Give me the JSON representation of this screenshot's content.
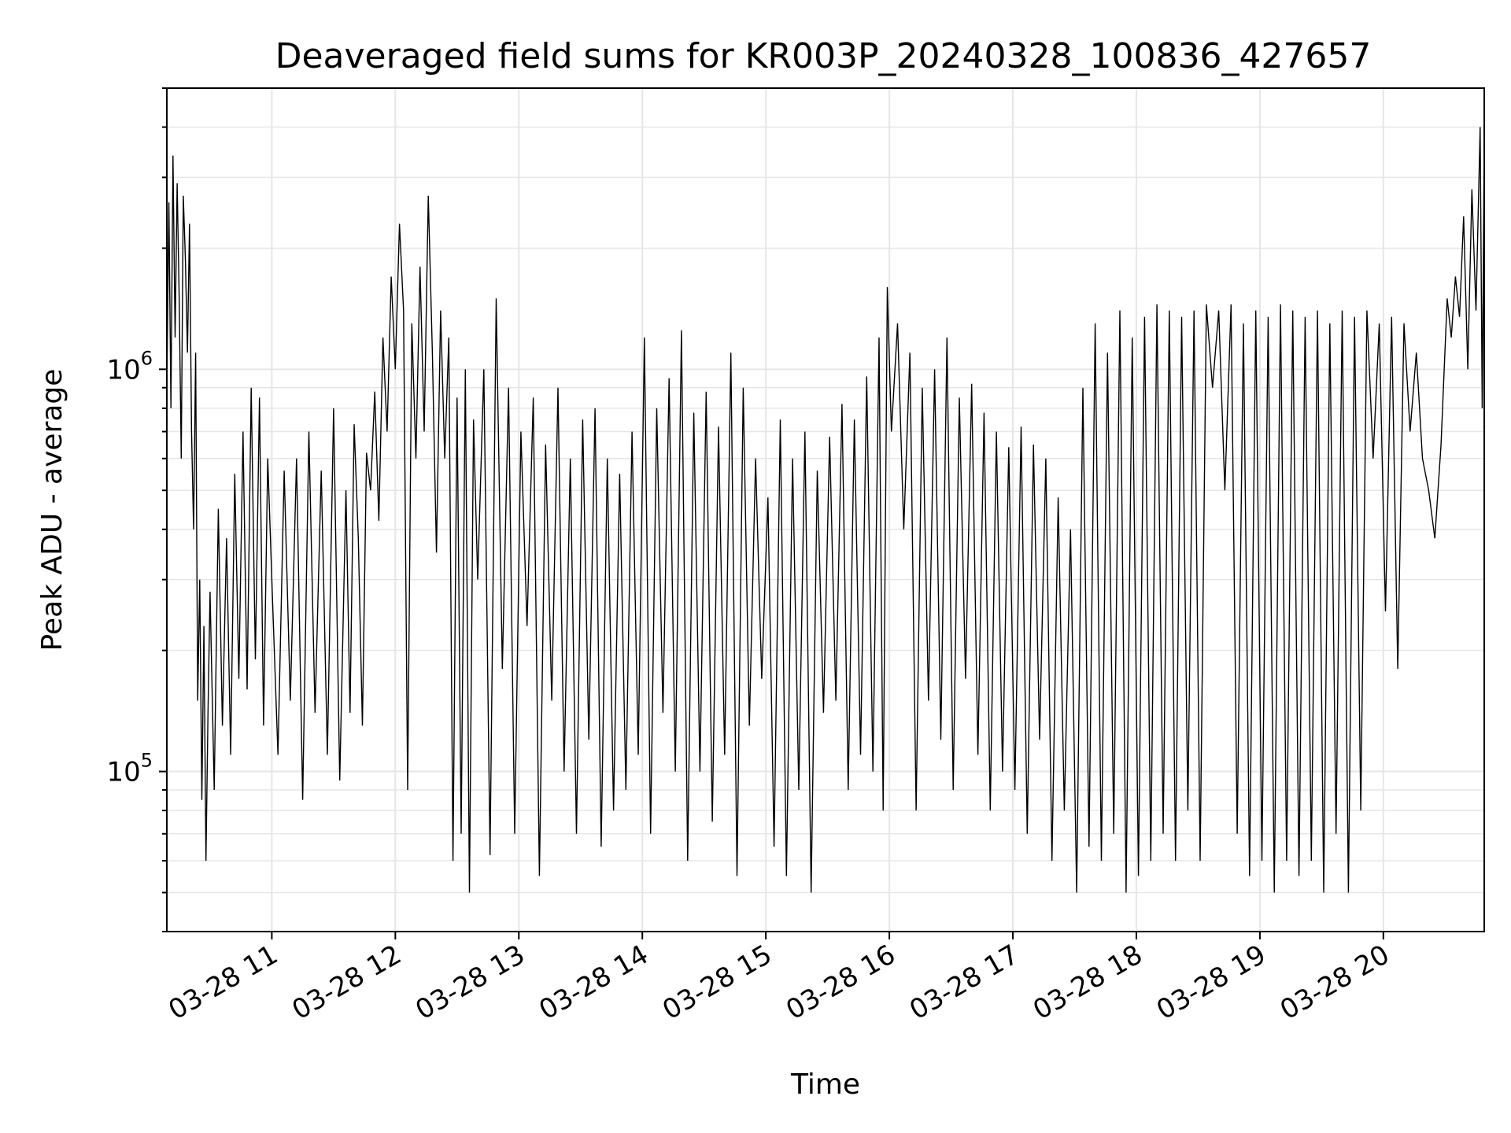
{
  "chart_data": {
    "type": "line",
    "title": "Deaveraged field sums for KR003P_20240328_100836_427657",
    "xlabel": "Time",
    "ylabel": "Peak ADU - average",
    "x_start": "2024-03-28 10:09",
    "x_end": "2024-03-28 20:49",
    "xlim": [
      "2024-03-28 10:09",
      "2024-03-28 20:49"
    ],
    "ylim": [
      40000,
      5000000
    ],
    "y_scale": "log",
    "grid": true,
    "line_color": "#000000",
    "x_ticks": [
      "03-28 11",
      "03-28 12",
      "03-28 13",
      "03-28 14",
      "03-28 15",
      "03-28 16",
      "03-28 17",
      "03-28 18",
      "03-28 19",
      "03-28 20"
    ],
    "y_ticks": [
      {
        "value": 100000,
        "base": "10",
        "exp": "5"
      },
      {
        "value": 1000000,
        "base": "10",
        "exp": "6"
      }
    ],
    "series": [
      {
        "x": [
          "2024-03-28 10:09",
          "2024-03-28 10:10",
          "2024-03-28 10:11",
          "2024-03-28 10:12",
          "2024-03-28 10:13",
          "2024-03-28 10:14",
          "2024-03-28 10:15",
          "2024-03-28 10:16",
          "2024-03-28 10:17",
          "2024-03-28 10:18",
          "2024-03-28 10:19",
          "2024-03-28 10:20",
          "2024-03-28 10:21",
          "2024-03-28 10:22",
          "2024-03-28 10:23",
          "2024-03-28 10:24",
          "2024-03-28 10:25",
          "2024-03-28 10:26",
          "2024-03-28 10:27",
          "2024-03-28 10:28",
          "2024-03-28 10:29",
          "2024-03-28 10:30",
          "2024-03-28 10:32",
          "2024-03-28 10:34",
          "2024-03-28 10:36",
          "2024-03-28 10:38",
          "2024-03-28 10:40",
          "2024-03-28 10:42",
          "2024-03-28 10:44",
          "2024-03-28 10:46",
          "2024-03-28 10:48",
          "2024-03-28 10:50",
          "2024-03-28 10:52",
          "2024-03-28 10:54",
          "2024-03-28 10:56",
          "2024-03-28 10:58",
          "2024-03-28 11:00",
          "2024-03-28 11:03",
          "2024-03-28 11:06",
          "2024-03-28 11:09",
          "2024-03-28 11:12",
          "2024-03-28 11:15",
          "2024-03-28 11:18",
          "2024-03-28 11:21",
          "2024-03-28 11:24",
          "2024-03-28 11:27",
          "2024-03-28 11:30",
          "2024-03-28 11:33",
          "2024-03-28 11:36",
          "2024-03-28 11:38",
          "2024-03-28 11:40",
          "2024-03-28 11:42",
          "2024-03-28 11:44",
          "2024-03-28 11:46",
          "2024-03-28 11:48",
          "2024-03-28 11:50",
          "2024-03-28 11:52",
          "2024-03-28 11:54",
          "2024-03-28 11:56",
          "2024-03-28 11:58",
          "2024-03-28 12:00",
          "2024-03-28 12:02",
          "2024-03-28 12:04",
          "2024-03-28 12:06",
          "2024-03-28 12:08",
          "2024-03-28 12:10",
          "2024-03-28 12:12",
          "2024-03-28 12:14",
          "2024-03-28 12:16",
          "2024-03-28 12:18",
          "2024-03-28 12:20",
          "2024-03-28 12:22",
          "2024-03-28 12:24",
          "2024-03-28 12:26",
          "2024-03-28 12:28",
          "2024-03-28 12:30",
          "2024-03-28 12:32",
          "2024-03-28 12:34",
          "2024-03-28 12:36",
          "2024-03-28 12:38",
          "2024-03-28 12:40",
          "2024-03-28 12:43",
          "2024-03-28 12:46",
          "2024-03-28 12:49",
          "2024-03-28 12:52",
          "2024-03-28 12:55",
          "2024-03-28 12:58",
          "2024-03-28 13:01",
          "2024-03-28 13:04",
          "2024-03-28 13:07",
          "2024-03-28 13:10",
          "2024-03-28 13:13",
          "2024-03-28 13:16",
          "2024-03-28 13:19",
          "2024-03-28 13:22",
          "2024-03-28 13:25",
          "2024-03-28 13:28",
          "2024-03-28 13:31",
          "2024-03-28 13:34",
          "2024-03-28 13:37",
          "2024-03-28 13:40",
          "2024-03-28 13:43",
          "2024-03-28 13:46",
          "2024-03-28 13:49",
          "2024-03-28 13:52",
          "2024-03-28 13:55",
          "2024-03-28 13:58",
          "2024-03-28 14:01",
          "2024-03-28 14:04",
          "2024-03-28 14:07",
          "2024-03-28 14:10",
          "2024-03-28 14:13",
          "2024-03-28 14:16",
          "2024-03-28 14:19",
          "2024-03-28 14:22",
          "2024-03-28 14:25",
          "2024-03-28 14:28",
          "2024-03-28 14:31",
          "2024-03-28 14:34",
          "2024-03-28 14:37",
          "2024-03-28 14:40",
          "2024-03-28 14:43",
          "2024-03-28 14:46",
          "2024-03-28 14:49",
          "2024-03-28 14:52",
          "2024-03-28 14:55",
          "2024-03-28 14:58",
          "2024-03-28 15:01",
          "2024-03-28 15:04",
          "2024-03-28 15:07",
          "2024-03-28 15:10",
          "2024-03-28 15:13",
          "2024-03-28 15:16",
          "2024-03-28 15:19",
          "2024-03-28 15:22",
          "2024-03-28 15:25",
          "2024-03-28 15:28",
          "2024-03-28 15:31",
          "2024-03-28 15:34",
          "2024-03-28 15:37",
          "2024-03-28 15:40",
          "2024-03-28 15:43",
          "2024-03-28 15:46",
          "2024-03-28 15:49",
          "2024-03-28 15:52",
          "2024-03-28 15:55",
          "2024-03-28 15:57",
          "2024-03-28 15:59",
          "2024-03-28 16:01",
          "2024-03-28 16:04",
          "2024-03-28 16:07",
          "2024-03-28 16:10",
          "2024-03-28 16:13",
          "2024-03-28 16:16",
          "2024-03-28 16:19",
          "2024-03-28 16:22",
          "2024-03-28 16:25",
          "2024-03-28 16:28",
          "2024-03-28 16:31",
          "2024-03-28 16:34",
          "2024-03-28 16:37",
          "2024-03-28 16:40",
          "2024-03-28 16:43",
          "2024-03-28 16:46",
          "2024-03-28 16:49",
          "2024-03-28 16:52",
          "2024-03-28 16:55",
          "2024-03-28 16:58",
          "2024-03-28 17:01",
          "2024-03-28 17:04",
          "2024-03-28 17:07",
          "2024-03-28 17:10",
          "2024-03-28 17:13",
          "2024-03-28 17:16",
          "2024-03-28 17:19",
          "2024-03-28 17:22",
          "2024-03-28 17:25",
          "2024-03-28 17:28",
          "2024-03-28 17:31",
          "2024-03-28 17:34",
          "2024-03-28 17:37",
          "2024-03-28 17:40",
          "2024-03-28 17:43",
          "2024-03-28 17:46",
          "2024-03-28 17:49",
          "2024-03-28 17:52",
          "2024-03-28 17:55",
          "2024-03-28 17:58",
          "2024-03-28 18:01",
          "2024-03-28 18:04",
          "2024-03-28 18:07",
          "2024-03-28 18:10",
          "2024-03-28 18:13",
          "2024-03-28 18:16",
          "2024-03-28 18:19",
          "2024-03-28 18:22",
          "2024-03-28 18:25",
          "2024-03-28 18:28",
          "2024-03-28 18:31",
          "2024-03-28 18:34",
          "2024-03-28 18:37",
          "2024-03-28 18:40",
          "2024-03-28 18:43",
          "2024-03-28 18:46",
          "2024-03-28 18:49",
          "2024-03-28 18:52",
          "2024-03-28 18:55",
          "2024-03-28 18:58",
          "2024-03-28 19:01",
          "2024-03-28 19:04",
          "2024-03-28 19:07",
          "2024-03-28 19:10",
          "2024-03-28 19:13",
          "2024-03-28 19:16",
          "2024-03-28 19:19",
          "2024-03-28 19:22",
          "2024-03-28 19:25",
          "2024-03-28 19:28",
          "2024-03-28 19:31",
          "2024-03-28 19:34",
          "2024-03-28 19:37",
          "2024-03-28 19:40",
          "2024-03-28 19:43",
          "2024-03-28 19:46",
          "2024-03-28 19:49",
          "2024-03-28 19:52",
          "2024-03-28 19:55",
          "2024-03-28 19:58",
          "2024-03-28 20:01",
          "2024-03-28 20:04",
          "2024-03-28 20:07",
          "2024-03-28 20:10",
          "2024-03-28 20:13",
          "2024-03-28 20:16",
          "2024-03-28 20:19",
          "2024-03-28 20:22",
          "2024-03-28 20:25",
          "2024-03-28 20:28",
          "2024-03-28 20:31",
          "2024-03-28 20:33",
          "2024-03-28 20:35",
          "2024-03-28 20:37",
          "2024-03-28 20:39",
          "2024-03-28 20:41",
          "2024-03-28 20:43",
          "2024-03-28 20:45",
          "2024-03-28 20:47",
          "2024-03-28 20:48",
          "2024-03-28 20:49"
        ],
        "y": [
          900000,
          2600000,
          800000,
          3400000,
          1200000,
          2900000,
          1500000,
          600000,
          2700000,
          1900000,
          1100000,
          2300000,
          700000,
          400000,
          1100000,
          150000,
          300000,
          85000,
          230000,
          60000,
          140000,
          280000,
          90000,
          450000,
          130000,
          380000,
          110000,
          550000,
          170000,
          700000,
          160000,
          900000,
          190000,
          850000,
          130000,
          600000,
          300000,
          110000,
          560000,
          150000,
          600000,
          85000,
          700000,
          140000,
          560000,
          110000,
          800000,
          95000,
          500000,
          140000,
          730000,
          380000,
          130000,
          620000,
          500000,
          880000,
          420000,
          1200000,
          700000,
          1700000,
          1000000,
          2300000,
          1400000,
          90000,
          1300000,
          600000,
          1800000,
          700000,
          2700000,
          1100000,
          350000,
          1400000,
          600000,
          1200000,
          60000,
          850000,
          70000,
          1000000,
          50000,
          750000,
          300000,
          1000000,
          62000,
          1500000,
          180000,
          900000,
          70000,
          700000,
          230000,
          850000,
          55000,
          650000,
          150000,
          900000,
          100000,
          600000,
          70000,
          750000,
          120000,
          800000,
          65000,
          600000,
          80000,
          550000,
          90000,
          700000,
          110000,
          1200000,
          70000,
          800000,
          140000,
          950000,
          100000,
          1250000,
          60000,
          780000,
          100000,
          880000,
          75000,
          720000,
          110000,
          1100000,
          55000,
          900000,
          130000,
          600000,
          170000,
          480000,
          65000,
          750000,
          55000,
          600000,
          90000,
          700000,
          50000,
          560000,
          140000,
          680000,
          150000,
          820000,
          90000,
          750000,
          110000,
          960000,
          100000,
          1200000,
          80000,
          1600000,
          700000,
          1300000,
          400000,
          1100000,
          80000,
          900000,
          150000,
          1000000,
          120000,
          1200000,
          90000,
          850000,
          170000,
          920000,
          110000,
          780000,
          80000,
          700000,
          100000,
          640000,
          90000,
          720000,
          70000,
          650000,
          120000,
          600000,
          60000,
          480000,
          80000,
          400000,
          50000,
          900000,
          65000,
          1300000,
          60000,
          1100000,
          70000,
          1400000,
          50000,
          1200000,
          55000,
          1350000,
          60000,
          1450000,
          70000,
          1400000,
          60000,
          1350000,
          80000,
          1400000,
          60000,
          1450000,
          900000,
          1400000,
          500000,
          1450000,
          70000,
          1300000,
          55000,
          1400000,
          60000,
          1350000,
          50000,
          1450000,
          60000,
          1400000,
          55000,
          1350000,
          60000,
          1400000,
          50000,
          1300000,
          70000,
          1400000,
          50000,
          1350000,
          80000,
          1400000,
          600000,
          1300000,
          250000,
          1350000,
          180000,
          1300000,
          700000,
          1100000,
          600000,
          500000,
          380000,
          650000,
          1500000,
          1200000,
          1700000,
          1350000,
          2400000,
          1000000,
          2800000,
          1400000,
          4000000,
          800000,
          3800000
        ]
      }
    ]
  }
}
